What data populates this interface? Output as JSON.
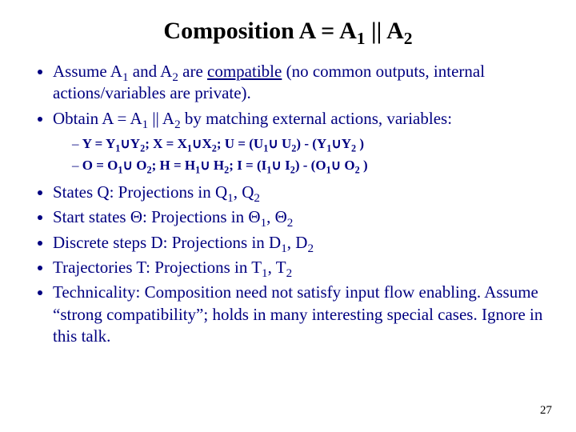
{
  "colors": {
    "background": "#ffffff",
    "title_color": "#000000",
    "body_color": "#000080",
    "pagenum_color": "#000000"
  },
  "typography": {
    "family": "Times New Roman",
    "title_fontsize": 30,
    "bullet_fontsize": 21,
    "subbullet_fontsize": 17,
    "pagenum_fontsize": 15
  },
  "title": {
    "pre": "Composition A = A",
    "sub1": "1",
    "mid": " || A",
    "sub2": "2"
  },
  "bullets": {
    "b1": {
      "t1": "Assume A",
      "s1": "1",
      "t2": " and A",
      "s2": "2",
      "t3": " are ",
      "underlined": "compatible",
      "t4": " (no common outputs, internal actions/variables are private)."
    },
    "b2": {
      "t1": "Obtain A = A",
      "s1": "1",
      "t2": " || A",
      "s2": "2",
      "t3": " by matching external actions, variables:"
    },
    "sub": {
      "a": {
        "t1": "Y = Y",
        "s1": "1",
        "t2": "∪Y",
        "s2": "2",
        "t3": "; X = X",
        "s3": "1",
        "t4": "∪X",
        "s4": "2",
        "t5": "; U = (U",
        "s5": "1",
        "t6": "∪ U",
        "s6": "2",
        "t7": ") - (Y",
        "s7": "1",
        "t8": "∪Y",
        "s8": "2",
        "t9": " )"
      },
      "b": {
        "t1": "O = O",
        "s1": "1",
        "t2": "∪ O",
        "s2": "2",
        "t3": "; H = H",
        "s3": "1",
        "t4": "∪ H",
        "s4": "2",
        "t5": "; I = (I",
        "s5": "1",
        "t6": "∪ I",
        "s6": "2",
        "t7": ") - (O",
        "s7": "1",
        "t8": "∪ O",
        "s8": "2",
        "t9": " )"
      }
    },
    "b3": {
      "t1": "States Q:  Projections in Q",
      "s1": "1",
      "t2": ", Q",
      "s2": "2"
    },
    "b4": {
      "t1": "Start states Θ:  Projections in Θ",
      "s1": "1",
      "t2": ", Θ",
      "s2": "2"
    },
    "b5": {
      "t1": "Discrete steps D:  Projections in D",
      "s1": "1",
      "t2": ", D",
      "s2": "2"
    },
    "b6": {
      "t1": "Trajectories T:  Projections in T",
      "s1": "1",
      "t2": ", T",
      "s2": "2"
    },
    "b7": "Technicality:  Composition need not satisfy input flow enabling.  Assume “strong compatibility”; holds in many interesting special cases.  Ignore in this talk."
  },
  "page_number": "27"
}
